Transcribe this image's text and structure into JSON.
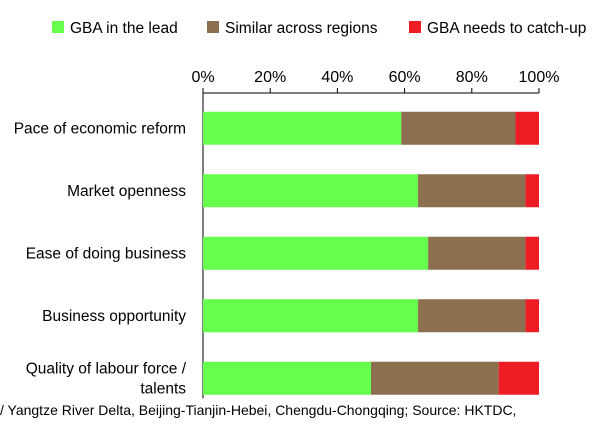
{
  "footnote": "/ Yangtze River Delta, Beijing-Tianjin-Hebei, Chengdu-Chongqing; Source: HKTDC,",
  "chart_data": {
    "type": "bar",
    "orientation": "horizontal",
    "stacked": true,
    "title": "",
    "xlabel": "",
    "ylabel": "",
    "xlim": [
      0,
      100
    ],
    "x_ticks": [
      "0%",
      "20%",
      "40%",
      "60%",
      "80%",
      "100%"
    ],
    "x_axis_position": "top",
    "legend_position": "top",
    "grid": false,
    "categories": [
      [
        "Pace of economic reform"
      ],
      [
        "Market openness"
      ],
      [
        "Ease of doing business"
      ],
      [
        "Business opportunity"
      ],
      [
        "Quality of labour force /",
        "talents"
      ]
    ],
    "series": [
      {
        "name": "GBA in the lead",
        "color": "#66ff4d",
        "values": [
          59,
          64,
          67,
          64,
          50
        ]
      },
      {
        "name": "Similar across regions",
        "color": "#8c6f4f",
        "values": [
          34,
          32,
          29,
          32,
          38
        ]
      },
      {
        "name": "GBA needs to catch-up",
        "color": "#ee1c24",
        "values": [
          7,
          4,
          4,
          4,
          12
        ]
      }
    ]
  }
}
